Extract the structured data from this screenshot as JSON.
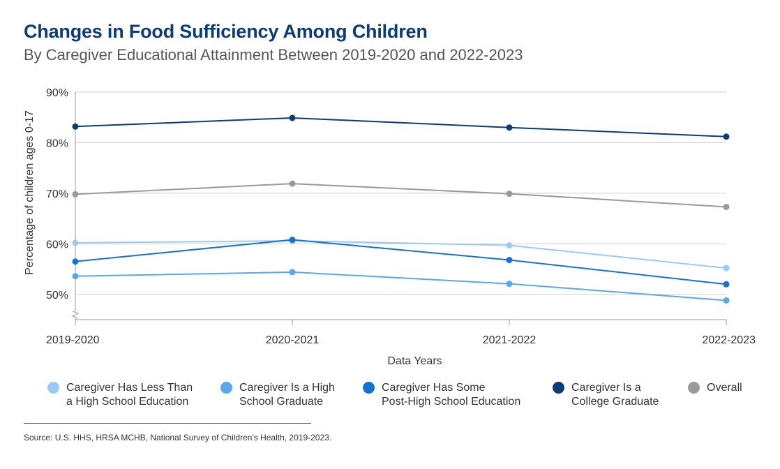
{
  "chart_data": {
    "type": "line",
    "title": "Changes in Food Sufficiency Among Children",
    "subtitle": "By Caregiver Educational Attainment Between 2019-2020 and 2022-2023",
    "xlabel": "Data Years",
    "ylabel": "Percentage of children ages 0-17",
    "categories": [
      "2019-2020",
      "2020-2021",
      "2021-2022",
      "2022-2023"
    ],
    "ylim": [
      45,
      90
    ],
    "yticks": [
      50,
      60,
      70,
      80,
      90
    ],
    "ytick_labels": [
      "50%",
      "60%",
      "70%",
      "80%",
      "90%"
    ],
    "axis_break": true,
    "series": [
      {
        "name": "Caregiver Has Less Than\na High School Education",
        "color": "#9ccaf5",
        "values": [
          60.2,
          60.6,
          59.7,
          55.2
        ]
      },
      {
        "name": "Caregiver Is a High\nSchool Graduate",
        "color": "#5aa7ea",
        "values": [
          53.6,
          54.4,
          52.1,
          48.8
        ]
      },
      {
        "name": "Caregiver Has Some\nPost-High School Education",
        "color": "#1473d1",
        "values": [
          56.5,
          60.8,
          56.8,
          52.0
        ]
      },
      {
        "name": "Caregiver Is a\nCollege Graduate",
        "color": "#0c3c78",
        "values": [
          83.2,
          84.9,
          83.0,
          81.2
        ]
      },
      {
        "name": "Overall",
        "color": "#9a9a9a",
        "values": [
          69.8,
          71.9,
          69.9,
          67.3
        ]
      }
    ]
  },
  "source": "Source: U.S. HHS, HRSA MCHB, National Survey of Children's Health, 2019-2023."
}
